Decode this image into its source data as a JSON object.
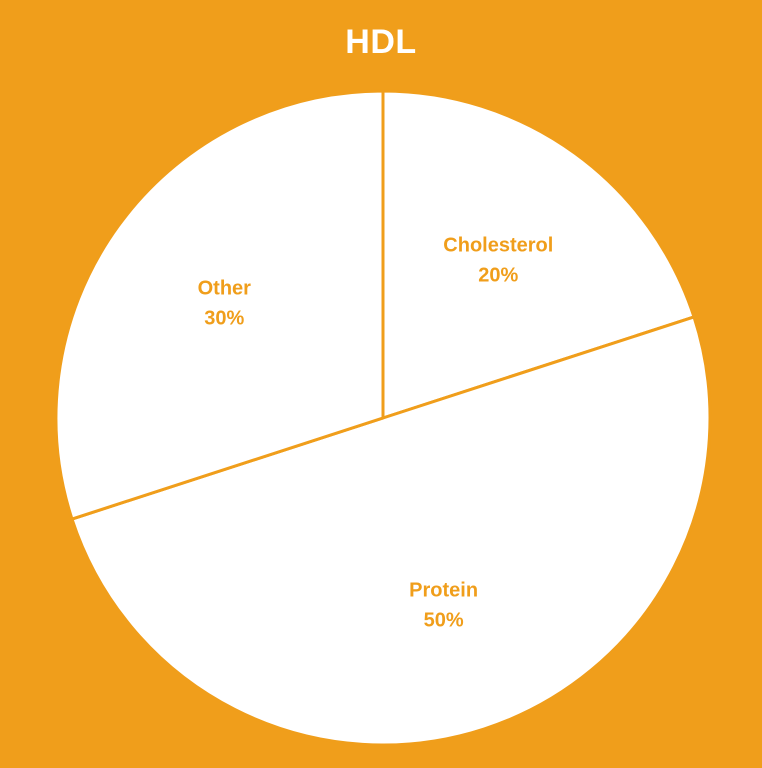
{
  "chart_data": {
    "type": "pie",
    "title": "HDL",
    "start_angle_deg": 0,
    "direction": "clockwise",
    "slices": [
      {
        "label": "Cholesterol",
        "value": 20,
        "value_label": "20%"
      },
      {
        "label": "Protein",
        "value": 50,
        "value_label": "50%"
      },
      {
        "label": "Other",
        "value": 30,
        "value_label": "30%"
      }
    ],
    "colors": {
      "background": "#f09e1b",
      "slice_fill": "#ffffff",
      "label_text": "#f09e1b",
      "title_text": "#ffffff"
    }
  }
}
